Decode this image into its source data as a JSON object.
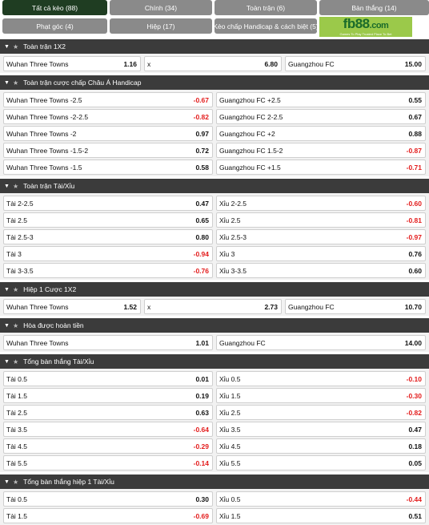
{
  "tabs": [
    {
      "label": "Tất cả kèo (88)",
      "active": true
    },
    {
      "label": "Chính (34)"
    },
    {
      "label": "Toàn trận (6)"
    },
    {
      "label": "Bàn thắng (14)"
    },
    {
      "label": "Phạt góc (4)"
    },
    {
      "label": "Hiệp (17)"
    },
    {
      "label": "Kèo chấp Handicap & cách biệt (5)"
    }
  ],
  "logo": {
    "word": "fb88",
    "domain": ".com",
    "tagline": "Games To Play  Trusted Place To Bet"
  },
  "sections": [
    {
      "title": "Toàn trận 1X2",
      "rows": [
        [
          [
            "Wuhan Three Towns",
            "1.16"
          ],
          [
            "x",
            "6.80"
          ],
          [
            "Guangzhou FC",
            "15.00"
          ]
        ]
      ]
    },
    {
      "title": "Toàn trận cược chấp Châu Á Handicap",
      "rows": [
        [
          [
            "Wuhan Three Towns -2.5",
            "-0.67"
          ],
          [
            "Guangzhou FC +2.5",
            "0.55"
          ]
        ],
        [
          [
            "Wuhan Three Towns -2-2.5",
            "-0.82"
          ],
          [
            "Guangzhou FC 2-2.5",
            "0.67"
          ]
        ],
        [
          [
            "Wuhan Three Towns -2",
            "0.97"
          ],
          [
            "Guangzhou FC +2",
            "0.88"
          ]
        ],
        [
          [
            "Wuhan Three Towns -1.5-2",
            "0.72"
          ],
          [
            "Guangzhou FC 1.5-2",
            "-0.87"
          ]
        ],
        [
          [
            "Wuhan Three Towns -1.5",
            "0.58"
          ],
          [
            "Guangzhou FC +1.5",
            "-0.71"
          ]
        ]
      ]
    },
    {
      "title": "Toàn trận Tài/Xỉu",
      "rows": [
        [
          [
            "Tài 2-2.5",
            "0.47"
          ],
          [
            "Xỉu 2-2.5",
            "-0.60"
          ]
        ],
        [
          [
            "Tài 2.5",
            "0.65"
          ],
          [
            "Xỉu 2.5",
            "-0.81"
          ]
        ],
        [
          [
            "Tài 2.5-3",
            "0.80"
          ],
          [
            "Xỉu 2.5-3",
            "-0.97"
          ]
        ],
        [
          [
            "Tài 3",
            "-0.94"
          ],
          [
            "Xỉu 3",
            "0.76"
          ]
        ],
        [
          [
            "Tài 3-3.5",
            "-0.76"
          ],
          [
            "Xỉu 3-3.5",
            "0.60"
          ]
        ]
      ]
    },
    {
      "title": "Hiệp 1 Cược 1X2",
      "rows": [
        [
          [
            "Wuhan Three Towns",
            "1.52"
          ],
          [
            "x",
            "2.73"
          ],
          [
            "Guangzhou FC",
            "10.70"
          ]
        ]
      ]
    },
    {
      "title": "Hòa được hoàn tiền",
      "rows": [
        [
          [
            "Wuhan Three Towns",
            "1.01"
          ],
          [
            "Guangzhou FC",
            "14.00"
          ]
        ]
      ]
    },
    {
      "title": "Tổng bàn thắng Tài/Xỉu",
      "rows": [
        [
          [
            "Tài 0.5",
            "0.01"
          ],
          [
            "Xỉu 0.5",
            "-0.10"
          ]
        ],
        [
          [
            "Tài 1.5",
            "0.19"
          ],
          [
            "Xỉu 1.5",
            "-0.30"
          ]
        ],
        [
          [
            "Tài 2.5",
            "0.63"
          ],
          [
            "Xỉu 2.5",
            "-0.82"
          ]
        ],
        [
          [
            "Tài 3.5",
            "-0.64"
          ],
          [
            "Xỉu 3.5",
            "0.47"
          ]
        ],
        [
          [
            "Tài 4.5",
            "-0.29"
          ],
          [
            "Xỉu 4.5",
            "0.18"
          ]
        ],
        [
          [
            "Tài 5.5",
            "-0.14"
          ],
          [
            "Xỉu 5.5",
            "0.05"
          ]
        ]
      ]
    },
    {
      "title": "Tổng bàn thắng hiệp 1 Tài/Xỉu",
      "rows": [
        [
          [
            "Tài 0.5",
            "0.30"
          ],
          [
            "Xỉu 0.5",
            "-0.44"
          ]
        ],
        [
          [
            "Tài 1.5",
            "-0.69"
          ],
          [
            "Xỉu 1.5",
            "0.51"
          ]
        ]
      ]
    }
  ],
  "colors": {
    "active_tab": "#1f3d22",
    "tab": "#8a8a8a",
    "header": "#3b3b3b",
    "negative": "#e31b1b",
    "logo_bg": "#9bc94a"
  }
}
